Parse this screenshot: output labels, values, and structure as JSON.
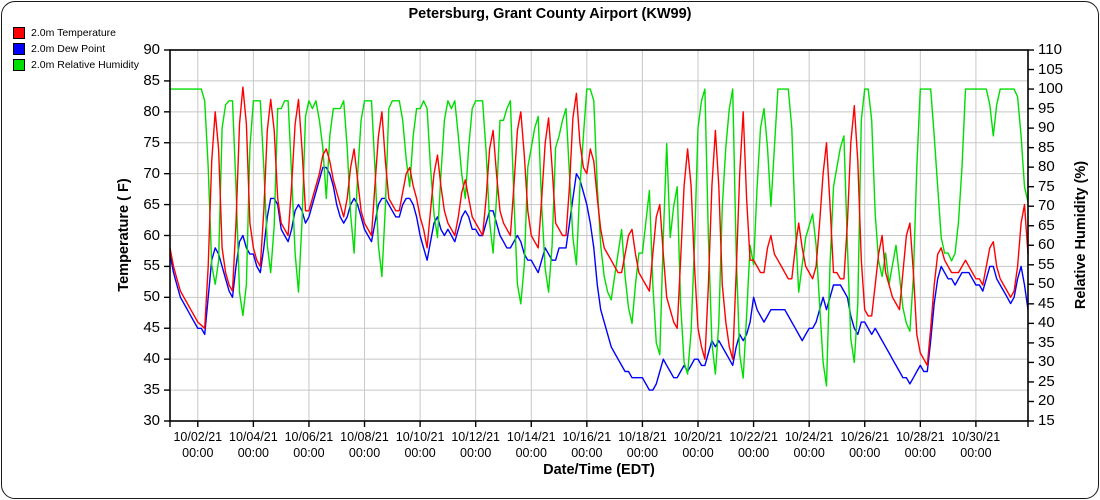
{
  "chart_data": {
    "type": "line",
    "title": "Petersburg, Grant County Airport (KW99)",
    "grid": true,
    "legend_position": "top-left",
    "x_axis": {
      "label": "Date/Time (EDT)",
      "start": "10/01/21 00:00",
      "end": "10/31/21 21:00",
      "step_hours": 3,
      "tick_time": "00:00",
      "tick_dates": [
        "10/02/21",
        "10/04/21",
        "10/06/21",
        "10/08/21",
        "10/10/21",
        "10/12/21",
        "10/14/21",
        "10/16/21",
        "10/18/21",
        "10/20/21",
        "10/22/21",
        "10/24/21",
        "10/26/21",
        "10/28/21",
        "10/30/21"
      ]
    },
    "y_left_axis": {
      "label": "Temperature ( F)",
      "min": 30,
      "max": 90,
      "step": 5
    },
    "y_right_axis": {
      "label": "Relative Humidity (%)",
      "min": 15,
      "max": 110,
      "step": 5
    },
    "series": [
      {
        "name": "2.0m Temperature",
        "color": "#ff0000",
        "axis": "left",
        "values": [
          58,
          55,
          53,
          51,
          50,
          49,
          48,
          47,
          46,
          45.5,
          45,
          55,
          72,
          80,
          74,
          58,
          54,
          52,
          51,
          62,
          78,
          84,
          78,
          62,
          58,
          56,
          55,
          64,
          77,
          82,
          77,
          66,
          62,
          61,
          60,
          68,
          78,
          82,
          74,
          64,
          64,
          66,
          68,
          70,
          73,
          74,
          72,
          69,
          67,
          65,
          63,
          66,
          71,
          74,
          69,
          64,
          62,
          61,
          60,
          68,
          76,
          80,
          72,
          66,
          65,
          64,
          64,
          67,
          70,
          71,
          68,
          66,
          63,
          61,
          58,
          64,
          70,
          73,
          68,
          64,
          62,
          61,
          60,
          63,
          67,
          69,
          66,
          63,
          62,
          61,
          60,
          66,
          74,
          77,
          70,
          64,
          62,
          61,
          60,
          68,
          77,
          80,
          73,
          64,
          60,
          59,
          58,
          66,
          75,
          79,
          71,
          62,
          61,
          60,
          60,
          68,
          79,
          83,
          75,
          71,
          70,
          74,
          72,
          66,
          61,
          58,
          57,
          56,
          55,
          54,
          54,
          57,
          60,
          61,
          57,
          54,
          53,
          52,
          51,
          57,
          63,
          65,
          57,
          50,
          48,
          46,
          45,
          56,
          68,
          74,
          68,
          55,
          45,
          42,
          40,
          52,
          68,
          77,
          68,
          52,
          46,
          42,
          40,
          54,
          70,
          80,
          66,
          56,
          56,
          55,
          54,
          54,
          58,
          60,
          57,
          56,
          55,
          54,
          53,
          53,
          58,
          62,
          58,
          55,
          54,
          53,
          55,
          62,
          70,
          75,
          65,
          54,
          54,
          53,
          53,
          62,
          75,
          81,
          72,
          56,
          48,
          47,
          47,
          52,
          57,
          60,
          54,
          52,
          50,
          49,
          48,
          54,
          60,
          62,
          54,
          44,
          41,
          40,
          39,
          45,
          52,
          57,
          58,
          56,
          55,
          54,
          54,
          54,
          55,
          56,
          55,
          54,
          53,
          53,
          52,
          55,
          58,
          59,
          55,
          53,
          52,
          51,
          50,
          51,
          55,
          62,
          65,
          57
        ]
      },
      {
        "name": "2.0m Dew Point",
        "color": "#0000ff",
        "axis": "left",
        "values": [
          57,
          54,
          52,
          50,
          49,
          48,
          47,
          46,
          45,
          45,
          44,
          50,
          56,
          58,
          57,
          55,
          53,
          51,
          50,
          55,
          59,
          60,
          58,
          57,
          57,
          55,
          54,
          58,
          63,
          66,
          66,
          65,
          61,
          60,
          59,
          61,
          64,
          65,
          64,
          62,
          63,
          65,
          67,
          69,
          71,
          71,
          70,
          68,
          65,
          63,
          62,
          63,
          65,
          66,
          65,
          63,
          61,
          60,
          59,
          62,
          65,
          66,
          66,
          65,
          64,
          63,
          63,
          65,
          66,
          66,
          65,
          63,
          60,
          58,
          56,
          59,
          62,
          63,
          61,
          60,
          61,
          60,
          59,
          61,
          63,
          64,
          63,
          61,
          61,
          60,
          60,
          62,
          64,
          64,
          62,
          60,
          59,
          58,
          58,
          59,
          60,
          59,
          57,
          56,
          56,
          55,
          54,
          56,
          58,
          57,
          56,
          56,
          58,
          58,
          58,
          62,
          66,
          70,
          69,
          67,
          65,
          62,
          58,
          52,
          48,
          46,
          44,
          42,
          41,
          40,
          39,
          38,
          38,
          37,
          37,
          37,
          37,
          36,
          35,
          35,
          36,
          38,
          40,
          39,
          38,
          37,
          37,
          38,
          39,
          38,
          39,
          40,
          40,
          39,
          39,
          41,
          43,
          42,
          43,
          42,
          41,
          40,
          39,
          42,
          44,
          43,
          44,
          46,
          50,
          48,
          47,
          46,
          47,
          48,
          48,
          48,
          48,
          48,
          47,
          46,
          45,
          44,
          43,
          44,
          45,
          45,
          46,
          48,
          50,
          48,
          50,
          52,
          52,
          52,
          51,
          50,
          47,
          45,
          44,
          46,
          46,
          45,
          44,
          45,
          44,
          43,
          42,
          41,
          40,
          39,
          38,
          37,
          37,
          36,
          37,
          38,
          39,
          38,
          38,
          43,
          49,
          53,
          55,
          54,
          53,
          53,
          52,
          53,
          54,
          54,
          54,
          53,
          52,
          52,
          51,
          53,
          55,
          55,
          53,
          52,
          51,
          50,
          49,
          50,
          53,
          55,
          52,
          48
        ]
      },
      {
        "name": "2.0m Relative Humidity",
        "color": "#00dd00",
        "axis": "right",
        "values": [
          100,
          100,
          100,
          100,
          100,
          100,
          100,
          100,
          100,
          100,
          97,
          80,
          55,
          50,
          56,
          90,
          96,
          97,
          97,
          75,
          48,
          42,
          50,
          85,
          97,
          97,
          97,
          80,
          60,
          53,
          65,
          95,
          95,
          97,
          97,
          78,
          58,
          48,
          66,
          93,
          97,
          95,
          97,
          92,
          85,
          72,
          88,
          95,
          95,
          95,
          97,
          85,
          68,
          58,
          78,
          92,
          97,
          97,
          97,
          80,
          60,
          52,
          70,
          95,
          97,
          97,
          97,
          92,
          82,
          75,
          88,
          95,
          95,
          97,
          95,
          80,
          68,
          62,
          78,
          92,
          97,
          95,
          97,
          88,
          78,
          72,
          85,
          95,
          97,
          97,
          97,
          84,
          66,
          58,
          72,
          92,
          92,
          95,
          97,
          72,
          50,
          45,
          55,
          80,
          85,
          90,
          93,
          70,
          54,
          48,
          60,
          85,
          88,
          92,
          95,
          78,
          62,
          55,
          75,
          88,
          100,
          100,
          97,
          75,
          60,
          52,
          48,
          46,
          52,
          58,
          64,
          52,
          44,
          40,
          50,
          58,
          58,
          66,
          74,
          50,
          35,
          32,
          62,
          86,
          62,
          70,
          75,
          45,
          30,
          27,
          38,
          60,
          90,
          97,
          100,
          62,
          35,
          27,
          40,
          70,
          85,
          95,
          100,
          58,
          32,
          26,
          42,
          60,
          55,
          75,
          90,
          95,
          85,
          70,
          85,
          100,
          100,
          100,
          100,
          90,
          65,
          48,
          55,
          62,
          65,
          68,
          60,
          45,
          30,
          24,
          55,
          75,
          80,
          85,
          88,
          60,
          36,
          30,
          45,
          92,
          100,
          100,
          92,
          68,
          56,
          52,
          58,
          50,
          55,
          60,
          52,
          44,
          40,
          38,
          52,
          80,
          100,
          100,
          100,
          100,
          88,
          75,
          62,
          58,
          58,
          56,
          58,
          66,
          80,
          100,
          100,
          100,
          100,
          100,
          100,
          100,
          96,
          88,
          96,
          100,
          100,
          100,
          100,
          100,
          98,
          88,
          75,
          71
        ]
      }
    ]
  },
  "colors": {
    "background": "#ffffff",
    "grid": "#c8c8c8",
    "axis": "#000000",
    "temperature": "#ff0000",
    "dew_point": "#0000ff",
    "relative_humidity": "#00dd00"
  }
}
